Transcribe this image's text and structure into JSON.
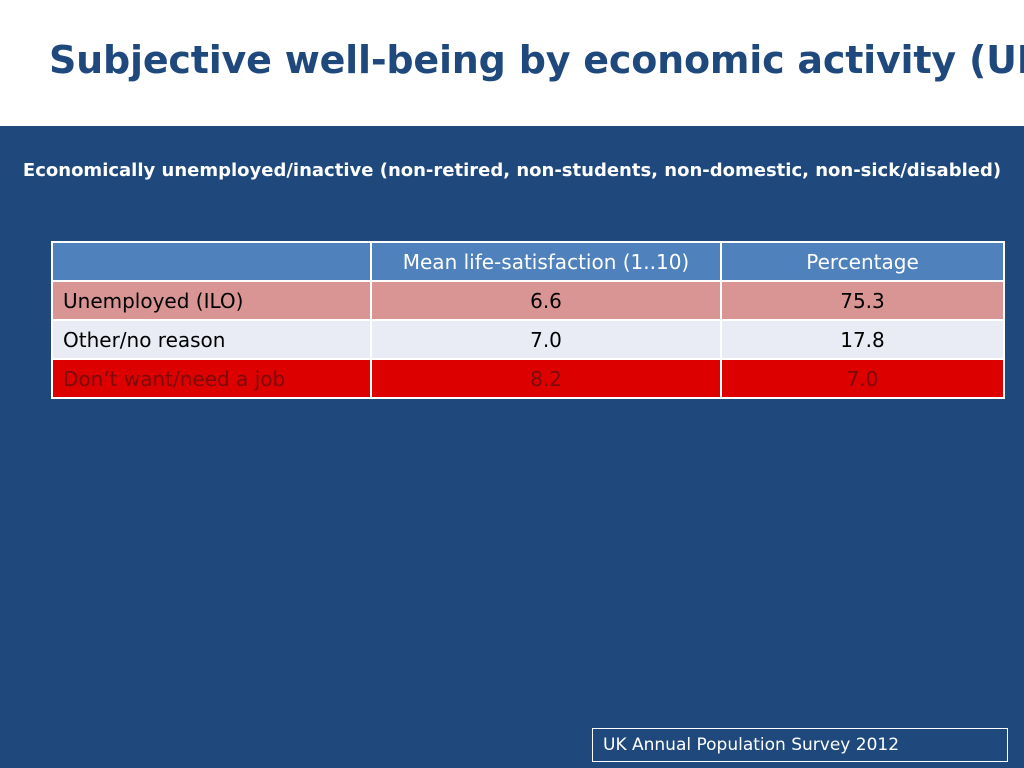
{
  "slide": {
    "title": "Subjective well-being by economic activity (UK)",
    "subtitle": "Economically unemployed/inactive (non-retired, non-students, non-domestic, non-sick/disabled)",
    "source": "UK Annual Population Survey 2012"
  },
  "table": {
    "headers": [
      "",
      "Mean life-satisfaction (1..10)",
      "Percentage"
    ],
    "rows": [
      {
        "label": "Unemployed (ILO)",
        "mean": "6.6",
        "percentage": "75.3"
      },
      {
        "label": "Other/no reason",
        "mean": "7.0",
        "percentage": "17.8"
      },
      {
        "label": "Don‘t want/need a job",
        "mean": "8.2",
        "percentage": "7.0"
      }
    ]
  },
  "colors": {
    "title": "#1f497d",
    "panel_background": "#1f497d",
    "header_row": "#4f81bd",
    "row_unemployed": "#d99594",
    "row_other": "#e9ebf5",
    "row_dont_want": "#dd0000"
  }
}
